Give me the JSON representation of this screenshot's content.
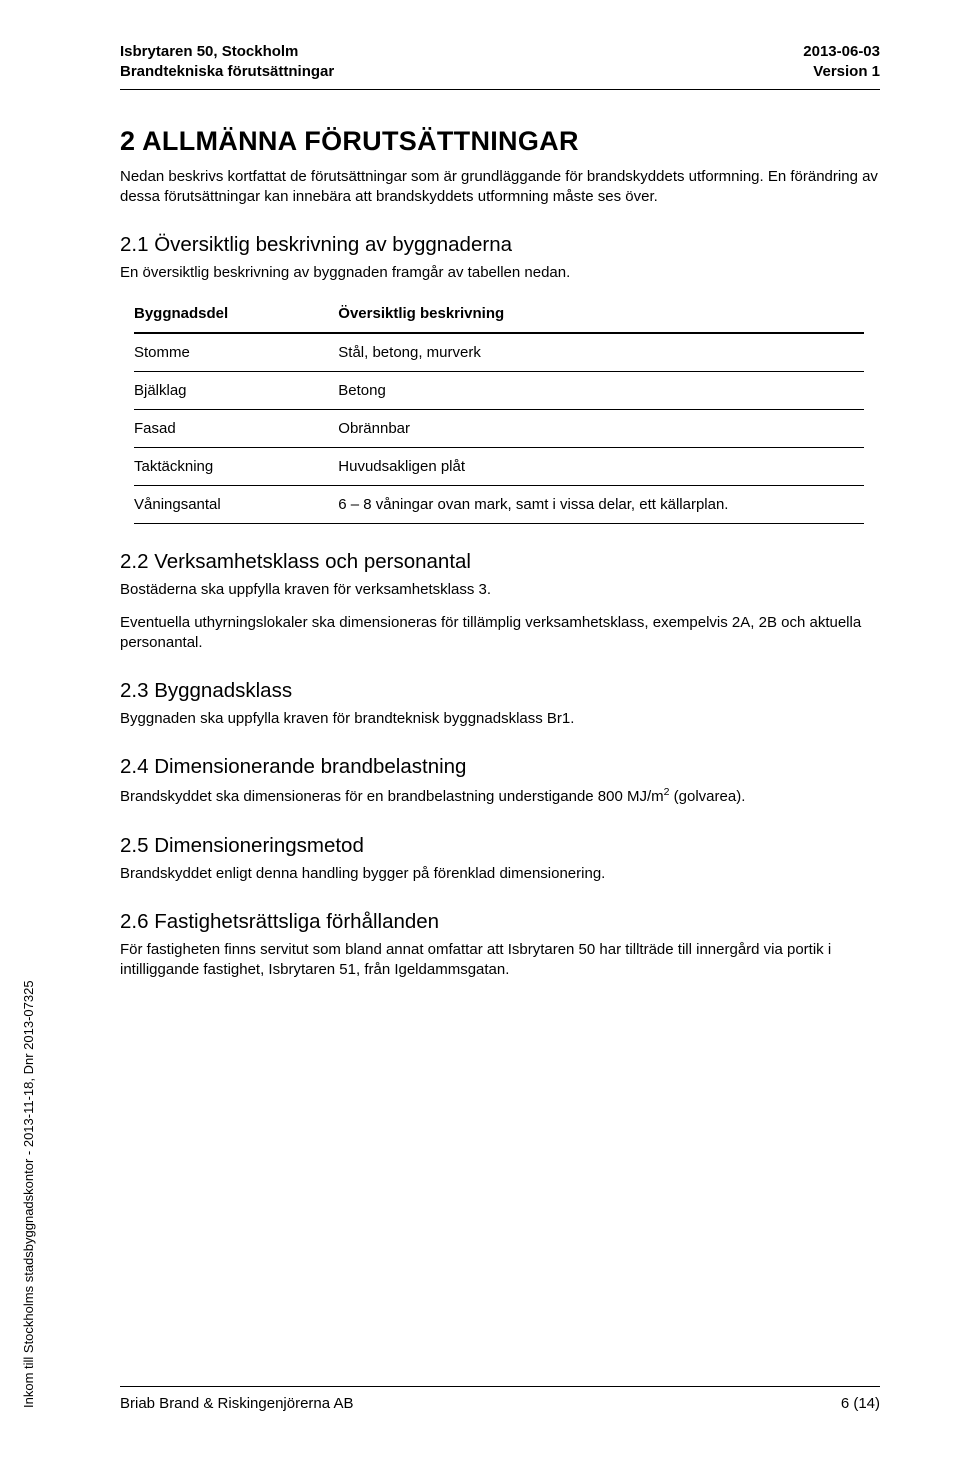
{
  "header": {
    "left_line1": "Isbrytaren 50, Stockholm",
    "left_line2": "Brandtekniska förutsättningar",
    "right_line1": "2013-06-03",
    "right_line2": "Version 1"
  },
  "section_title": "2 ALLMÄNNA FÖRUTSÄTTNINGAR",
  "intro_p": "Nedan beskrivs kortfattat de förutsättningar som är grundläggande för brandskyddets utformning. En förändring av dessa förutsättningar kan innebära att brandskyddets utformning måste ses över.",
  "s21": {
    "heading": "2.1 Översiktlig beskrivning av byggnaderna",
    "p": "En översiktlig beskrivning av byggnaden framgår av tabellen nedan."
  },
  "table": {
    "col1_header": "Byggnadsdel",
    "col2_header": "Översiktlig beskrivning",
    "rows": [
      {
        "c1": "Stomme",
        "c2": "Stål, betong, murverk"
      },
      {
        "c1": "Bjälklag",
        "c2": "Betong"
      },
      {
        "c1": "Fasad",
        "c2": "Obrännbar"
      },
      {
        "c1": "Taktäckning",
        "c2": "Huvudsakligen plåt"
      },
      {
        "c1": "Våningsantal",
        "c2": "6 – 8 våningar ovan mark, samt i vissa delar, ett källarplan."
      }
    ]
  },
  "s22": {
    "heading": "2.2 Verksamhetsklass och personantal",
    "p1": "Bostäderna ska uppfylla kraven för verksamhetsklass 3.",
    "p2": "Eventuella uthyrningslokaler ska dimensioneras för tillämplig verksamhetsklass, exempelvis 2A, 2B och aktuella personantal."
  },
  "s23": {
    "heading": "2.3 Byggnadsklass",
    "p": "Byggnaden ska uppfylla kraven för brandteknisk byggnadsklass Br1."
  },
  "s24": {
    "heading": "2.4 Dimensionerande brandbelastning",
    "p_pre": "Brandskyddet ska dimensioneras för en brandbelastning understigande 800 MJ/m",
    "p_sup": "2",
    "p_post": " (golvarea)."
  },
  "s25": {
    "heading": "2.5 Dimensioneringsmetod",
    "p": "Brandskyddet enligt denna handling bygger på förenklad dimensionering."
  },
  "s26": {
    "heading": "2.6 Fastighetsrättsliga förhållanden",
    "p": "För fastigheten finns servitut som bland annat omfattar att Isbrytaren 50 har tillträde till innergård via portik i intilliggande fastighet, Isbrytaren 51, från Igeldammsgatan."
  },
  "side_note": "Inkom till Stockholms stadsbyggnadskontor - 2013-11-18, Dnr 2013-07325",
  "footer": {
    "left": "Briab Brand & Riskingenjörerna AB",
    "right": "6 (14)"
  }
}
